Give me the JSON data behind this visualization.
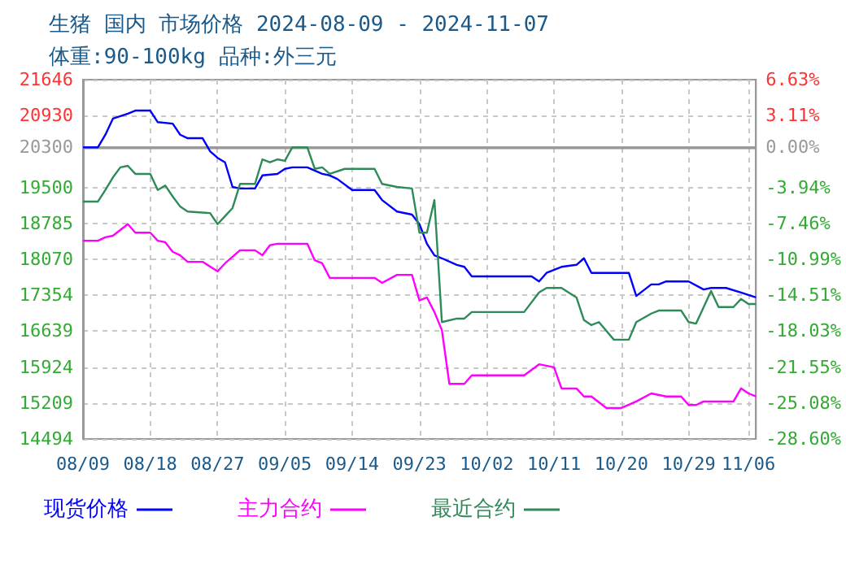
{
  "chart_data": {
    "type": "line",
    "title": "生猪 国内 市场价格 2024-08-09 - 2024-11-07",
    "subtitle": "体重:90-100kg 品种:外三元",
    "xlim": [
      "2024-08-09",
      "2024-11-07"
    ],
    "xticks": [
      {
        "value": "2024-08-09",
        "label": "08/09"
      },
      {
        "value": "2024-08-18",
        "label": "08/18"
      },
      {
        "value": "2024-08-27",
        "label": "08/27"
      },
      {
        "value": "2024-09-05",
        "label": "09/05"
      },
      {
        "value": "2024-09-14",
        "label": "09/14"
      },
      {
        "value": "2024-09-23",
        "label": "09/23"
      },
      {
        "value": "2024-10-02",
        "label": "10/02"
      },
      {
        "value": "2024-10-11",
        "label": "10/11"
      },
      {
        "value": "2024-10-20",
        "label": "10/20"
      },
      {
        "value": "2024-10-29",
        "label": "10/29"
      },
      {
        "value": "2024-11-06",
        "label": "11/06"
      }
    ],
    "ylim": [
      14494,
      21646
    ],
    "yticks": [
      14494,
      15209,
      15924,
      16639,
      17354,
      18070,
      18785,
      19500,
      20300,
      20930,
      21646
    ],
    "y2lim": [
      -28.6,
      6.63
    ],
    "y2ticks": [
      {
        "value": -28.6,
        "label": "-28.60%"
      },
      {
        "value": -25.08,
        "label": "-25.08%"
      },
      {
        "value": -21.55,
        "label": "-21.55%"
      },
      {
        "value": -18.03,
        "label": "-18.03%"
      },
      {
        "value": -14.51,
        "label": "-14.51%"
      },
      {
        "value": -10.99,
        "label": "-10.99%"
      },
      {
        "value": -7.46,
        "label": "-7.46%"
      },
      {
        "value": -3.94,
        "label": "-3.94%"
      },
      {
        "value": 0,
        "label": "0.00%"
      },
      {
        "value": 3.11,
        "label": "3.11%"
      },
      {
        "value": 6.63,
        "label": "6.63%"
      }
    ],
    "ref_lines": [
      {
        "axis": "y",
        "value": 20300,
        "color": "#999999",
        "line_style": "solid"
      }
    ],
    "grid": true,
    "legend": "bottom left",
    "marker": "none",
    "line_style": "solid",
    "series": [
      {
        "name": "现货价格",
        "color": "#0000ff",
        "x": [
          "2024-08-09",
          "2024-08-11",
          "2024-08-12",
          "2024-08-13",
          "2024-08-15",
          "2024-08-16",
          "2024-08-18",
          "2024-08-19",
          "2024-08-21",
          "2024-08-22",
          "2024-08-23",
          "2024-08-25",
          "2024-08-26",
          "2024-08-27",
          "2024-08-28",
          "2024-08-29",
          "2024-08-30",
          "2024-09-01",
          "2024-09-02",
          "2024-09-04",
          "2024-09-05",
          "2024-09-06",
          "2024-09-08",
          "2024-09-10",
          "2024-09-11",
          "2024-09-12",
          "2024-09-14",
          "2024-09-17",
          "2024-09-18",
          "2024-09-20",
          "2024-09-22",
          "2024-09-23",
          "2024-09-24",
          "2024-09-25",
          "2024-09-26",
          "2024-09-28",
          "2024-09-29",
          "2024-09-30",
          "2024-10-08",
          "2024-10-09",
          "2024-10-10",
          "2024-10-12",
          "2024-10-14",
          "2024-10-15",
          "2024-10-16",
          "2024-10-21",
          "2024-10-22",
          "2024-10-24",
          "2024-10-25",
          "2024-10-26",
          "2024-10-29",
          "2024-10-31",
          "2024-11-01",
          "2024-11-03",
          "2024-11-05",
          "2024-11-07"
        ],
        "values": [
          20300,
          20300,
          20550,
          20870,
          20970,
          21030,
          21030,
          20800,
          20770,
          20550,
          20480,
          20480,
          20220,
          20090,
          20000,
          19510,
          19480,
          19480,
          19740,
          19770,
          19870,
          19900,
          19900,
          19770,
          19740,
          19670,
          19450,
          19450,
          19250,
          19020,
          18960,
          18770,
          18380,
          18150,
          18090,
          17960,
          17920,
          17730,
          17730,
          17630,
          17800,
          17920,
          17960,
          18090,
          17800,
          17800,
          17340,
          17570,
          17570,
          17630,
          17630,
          17470,
          17500,
          17500,
          17410,
          17310
        ]
      },
      {
        "name": "主力合约",
        "color": "#ff00ff",
        "x": [
          "2024-08-09",
          "2024-08-11",
          "2024-08-12",
          "2024-08-13",
          "2024-08-15",
          "2024-08-16",
          "2024-08-18",
          "2024-08-19",
          "2024-08-20",
          "2024-08-21",
          "2024-08-22",
          "2024-08-23",
          "2024-08-25",
          "2024-08-27",
          "2024-08-28",
          "2024-08-30",
          "2024-09-01",
          "2024-09-02",
          "2024-09-03",
          "2024-09-04",
          "2024-09-08",
          "2024-09-09",
          "2024-09-10",
          "2024-09-11",
          "2024-09-17",
          "2024-09-18",
          "2024-09-20",
          "2024-09-22",
          "2024-09-23",
          "2024-09-24",
          "2024-09-25",
          "2024-09-26",
          "2024-09-27",
          "2024-09-29",
          "2024-09-30",
          "2024-10-07",
          "2024-10-09",
          "2024-10-11",
          "2024-10-12",
          "2024-10-14",
          "2024-10-15",
          "2024-10-16",
          "2024-10-18",
          "2024-10-20",
          "2024-10-22",
          "2024-10-24",
          "2024-10-26",
          "2024-10-28",
          "2024-10-29",
          "2024-10-30",
          "2024-10-31",
          "2024-11-04",
          "2024-11-05",
          "2024-11-06",
          "2024-11-07"
        ],
        "values": [
          18440,
          18440,
          18510,
          18540,
          18770,
          18600,
          18600,
          18440,
          18410,
          18220,
          18150,
          18020,
          18020,
          17830,
          17990,
          18250,
          18250,
          18150,
          18350,
          18380,
          18380,
          18050,
          17990,
          17700,
          17700,
          17600,
          17760,
          17760,
          17250,
          17310,
          17020,
          16660,
          15590,
          15590,
          15760,
          15760,
          15980,
          15920,
          15500,
          15500,
          15340,
          15340,
          15110,
          15110,
          15240,
          15400,
          15340,
          15340,
          15170,
          15170,
          15240,
          15240,
          15500,
          15400,
          15340
        ]
      },
      {
        "name": "最近合约",
        "color": "#2e8b57",
        "x": [
          "2024-08-09",
          "2024-08-11",
          "2024-08-12",
          "2024-08-13",
          "2024-08-14",
          "2024-08-15",
          "2024-08-16",
          "2024-08-18",
          "2024-08-19",
          "2024-08-20",
          "2024-08-21",
          "2024-08-22",
          "2024-08-23",
          "2024-08-26",
          "2024-08-27",
          "2024-08-28",
          "2024-08-29",
          "2024-08-30",
          "2024-09-01",
          "2024-09-02",
          "2024-09-03",
          "2024-09-04",
          "2024-09-05",
          "2024-09-06",
          "2024-09-08",
          "2024-09-09",
          "2024-09-10",
          "2024-09-11",
          "2024-09-13",
          "2024-09-17",
          "2024-09-18",
          "2024-09-20",
          "2024-09-22",
          "2024-09-23",
          "2024-09-24",
          "2024-09-25",
          "2024-09-26",
          "2024-09-28",
          "2024-09-29",
          "2024-09-30",
          "2024-10-07",
          "2024-10-09",
          "2024-10-10",
          "2024-10-12",
          "2024-10-14",
          "2024-10-15",
          "2024-10-16",
          "2024-10-17",
          "2024-10-19",
          "2024-10-21",
          "2024-10-22",
          "2024-10-24",
          "2024-10-25",
          "2024-10-28",
          "2024-10-29",
          "2024-10-30",
          "2024-11-01",
          "2024-11-02",
          "2024-11-04",
          "2024-11-05",
          "2024-11-06",
          "2024-11-07"
        ],
        "values": [
          19220,
          19220,
          19450,
          19700,
          19900,
          19930,
          19770,
          19770,
          19450,
          19540,
          19320,
          19120,
          19020,
          18990,
          18770,
          18930,
          19090,
          19570,
          19570,
          20060,
          20000,
          20060,
          20030,
          20300,
          20300,
          19870,
          19900,
          19770,
          19870,
          19870,
          19570,
          19510,
          19480,
          18600,
          18600,
          19250,
          16820,
          16890,
          16890,
          17020,
          17020,
          17410,
          17500,
          17500,
          17310,
          16860,
          16760,
          16820,
          16470,
          16470,
          16820,
          16990,
          17050,
          17050,
          16820,
          16790,
          17440,
          17120,
          17120,
          17280,
          17180,
          17180
        ]
      }
    ]
  }
}
